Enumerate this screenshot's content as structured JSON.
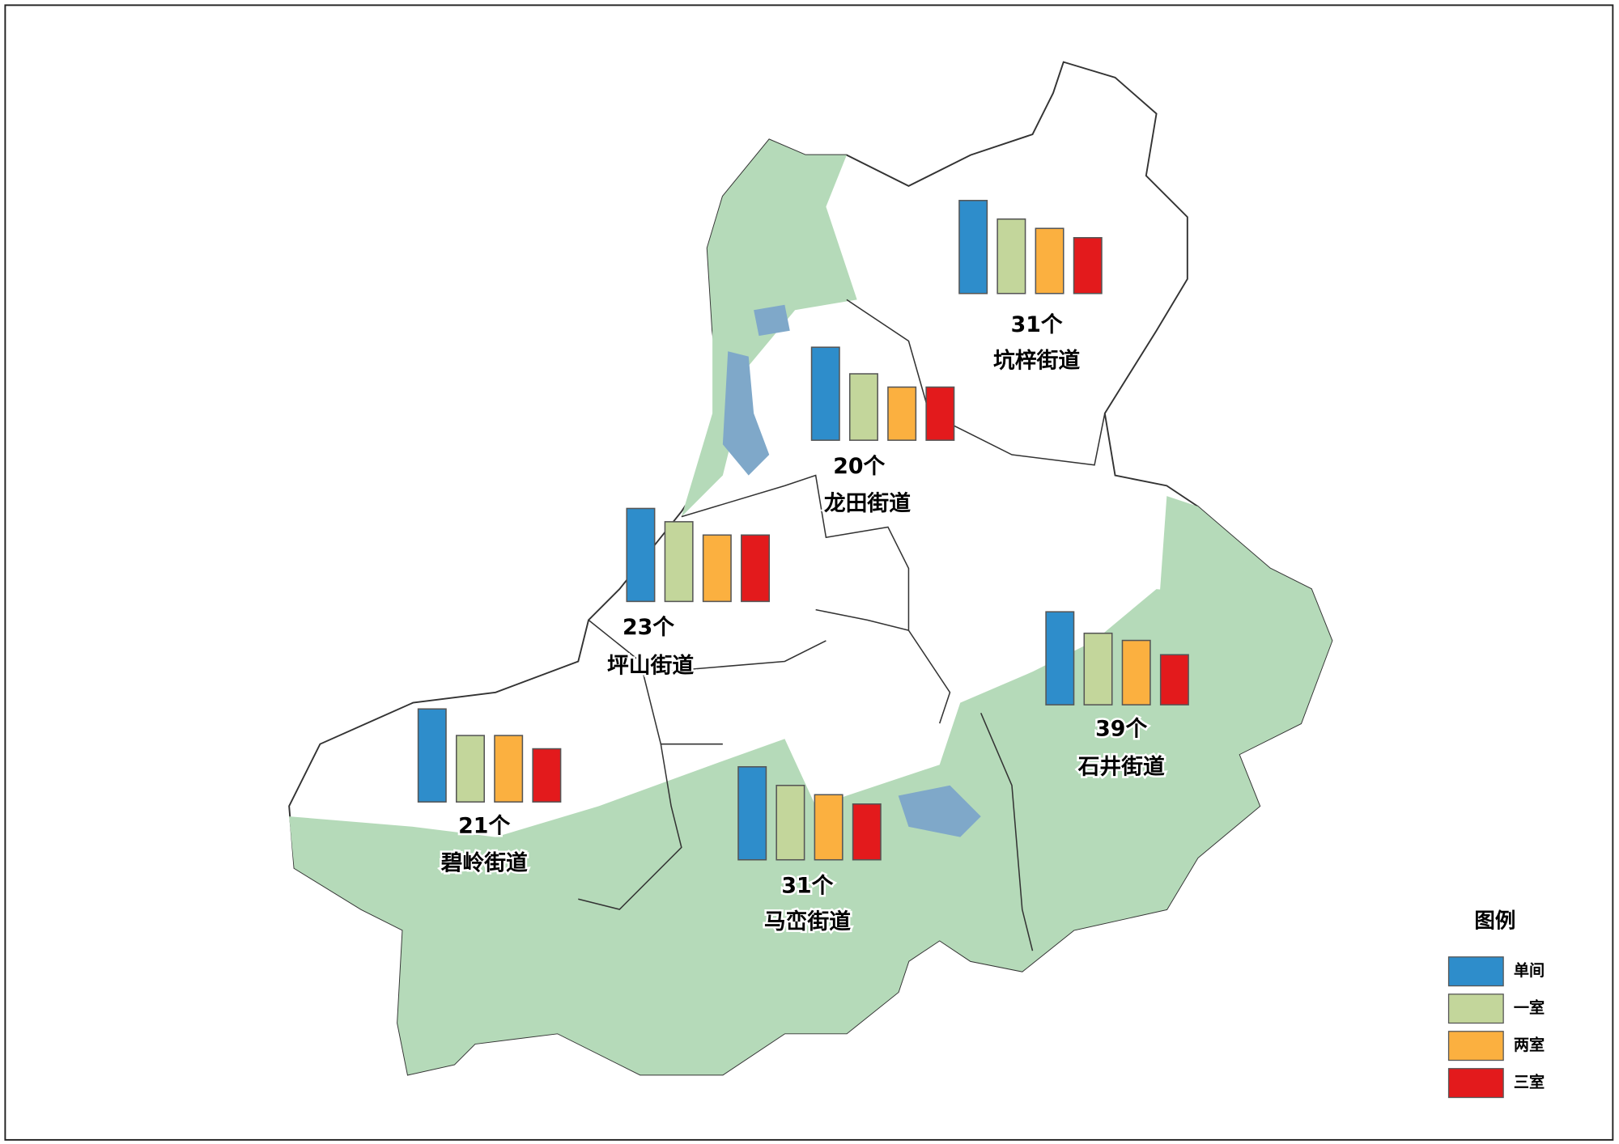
{
  "legend": {
    "title": "图例",
    "items": [
      {
        "name": "单间",
        "color": "#2e8dcb"
      },
      {
        "name": "一室",
        "color": "#c3d69b"
      },
      {
        "name": "两室",
        "color": "#fbb040"
      },
      {
        "name": "三室",
        "color": "#e31a1c"
      }
    ]
  },
  "districts": [
    {
      "name": "坑梓街道",
      "total": 31,
      "total_label": "31个",
      "values": [
        10,
        8,
        7,
        6
      ]
    },
    {
      "name": "龙田街道",
      "total": 20,
      "total_label": "20个",
      "values": [
        7,
        5,
        4,
        4
      ]
    },
    {
      "name": "坪山街道",
      "total": 23,
      "total_label": "23个",
      "values": [
        7,
        6,
        5,
        5
      ]
    },
    {
      "name": "碧岭街道",
      "total": 21,
      "total_label": "21个",
      "values": [
        7,
        5,
        5,
        4
      ]
    },
    {
      "name": "马峦街道",
      "total": 31,
      "total_label": "31个",
      "values": [
        10,
        8,
        7,
        6
      ]
    },
    {
      "name": "石井街道",
      "total": 39,
      "total_label": "39个",
      "values": [
        13,
        10,
        9,
        7
      ]
    }
  ]
}
